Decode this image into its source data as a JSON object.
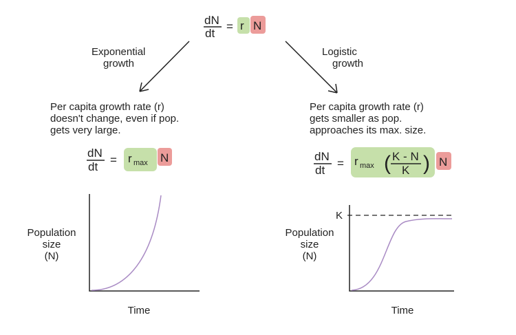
{
  "colors": {
    "green": "#c6e0aa",
    "red": "#ec9c9a",
    "curve": "#a98bc4",
    "ink": "#222222"
  },
  "top_equation": {
    "numerator": "dN",
    "denominator": "dt",
    "equals": "=",
    "r": "r",
    "N": "N"
  },
  "exponential": {
    "title_line1": "Exponential",
    "title_line2": "growth",
    "desc": [
      "Per capita growth rate (r)",
      "doesn't change, even if pop.",
      "gets very large."
    ],
    "equation": {
      "numerator": "dN",
      "denominator": "dt",
      "equals": "=",
      "r": "r",
      "sub": "max",
      "N": "N"
    },
    "graph": {
      "ylabel": [
        "Population",
        "size",
        "(N)"
      ],
      "xlabel": "Time"
    }
  },
  "logistic": {
    "title_line1": "Logistic",
    "title_line2": "growth",
    "desc": [
      "Per capita growth rate (r)",
      "gets smaller as pop.",
      "approaches its max. size."
    ],
    "equation": {
      "numerator": "dN",
      "denominator": "dt",
      "equals": "=",
      "r": "r",
      "sub": "max",
      "frac_num": "K - N",
      "frac_den": "K",
      "N": "N"
    },
    "graph": {
      "ylabel": [
        "Population",
        "size",
        "(N)"
      ],
      "xlabel": "Time",
      "k_label": "K"
    }
  }
}
